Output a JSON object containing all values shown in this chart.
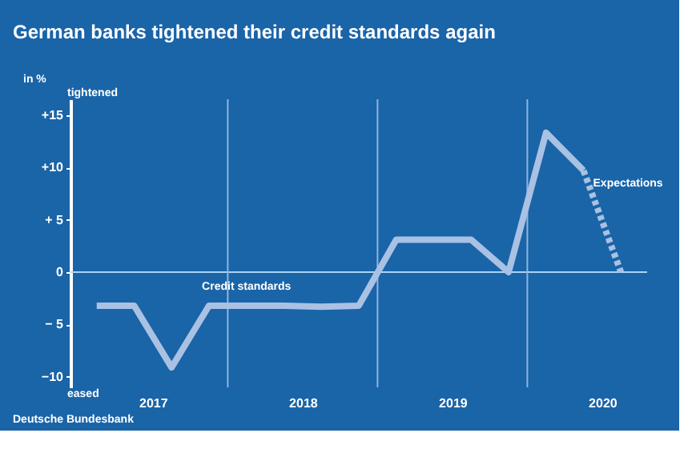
{
  "chart_data": {
    "type": "line",
    "title": "German banks tightened their credit standards again",
    "ylabel": "in %",
    "x": [
      2017.125,
      2017.375,
      2017.625,
      2017.875,
      2018.125,
      2018.375,
      2018.625,
      2018.875,
      2019.125,
      2019.375,
      2019.625,
      2019.875,
      2020.125,
      2020.375
    ],
    "series": [
      {
        "name": "Credit standards",
        "color": "#a9c1e3",
        "line_style": "solid",
        "values": [
          -3.2,
          -3.2,
          -9.1,
          -3.2,
          -3.2,
          -3.2,
          -3.3,
          -3.2,
          3.1,
          3.1,
          3.1,
          0,
          13.3,
          9.7
        ]
      },
      {
        "name": "Expectations",
        "color": "#a9c1e3",
        "line_style": "dashed",
        "x": [
          2020.375,
          2020.625
        ],
        "values": [
          9.7,
          0
        ]
      }
    ],
    "xlim": [
      2016.95,
      2020.8
    ],
    "xticks": [
      {
        "value": 2017.5,
        "label": "2017"
      },
      {
        "value": 2018.5,
        "label": "2018"
      },
      {
        "value": 2019.5,
        "label": "2019"
      },
      {
        "value": 2020.5,
        "label": "2020"
      }
    ],
    "ylim": [
      -11,
      16.5
    ],
    "yticks": [
      {
        "value": -10,
        "label": "−10"
      },
      {
        "value": -5,
        "label": "− 5"
      },
      0,
      {
        "value": 5,
        "label": "+ 5"
      },
      {
        "value": 10,
        "label": "+10"
      },
      {
        "value": 15,
        "label": "+15"
      }
    ],
    "ref_lines": [
      {
        "axis": "y",
        "value": 0,
        "color": "#a9d4f5"
      },
      {
        "axis": "x",
        "value": 2018,
        "color": "#8fb6de"
      },
      {
        "axis": "x",
        "value": 2019,
        "color": "#8fb6de"
      },
      {
        "axis": "x",
        "value": 2020,
        "color": "#8fb6de"
      }
    ],
    "annotations": [
      "tightened",
      "eased",
      "Deutsche Bundesbank"
    ],
    "grid": false,
    "marker": "none"
  }
}
